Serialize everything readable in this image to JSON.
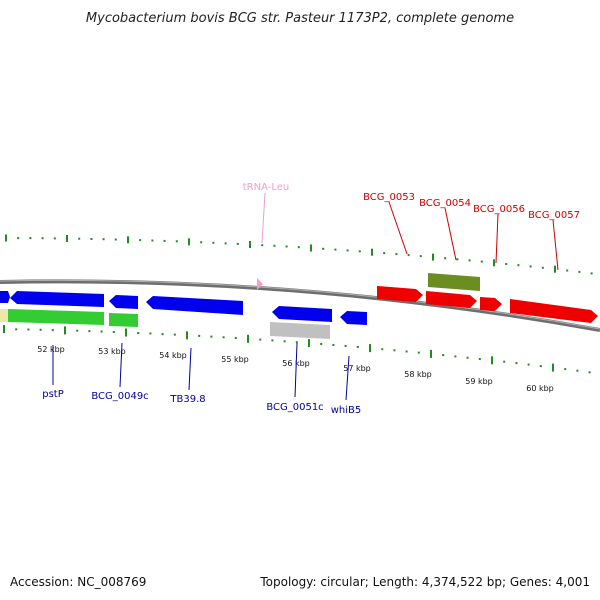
{
  "title": "Mycobacterium bovis BCG str. Pasteur 1173P2, complete genome",
  "footer": {
    "accession": "Accession: NC_008769",
    "topology": "Topology: circular; Length: 4,374,522 bp; Genes: 4,001"
  },
  "colors": {
    "backbone": "#808080",
    "plus_strand": "#ff0000",
    "minus_strand": "#0000ee",
    "rna_label": "#f0a0c8",
    "green_gene": "#33cc33",
    "olive_gene": "#6b8e23",
    "gray_gene": "#c0c0c0",
    "tick": "#228b22"
  },
  "scale": {
    "ticks": [
      "52 kbp",
      "53 kbp",
      "54 kbp",
      "55 kbp",
      "56 kbp",
      "57 kbp",
      "58 kbp",
      "59 kbp",
      "60 kbp"
    ]
  },
  "labels": {
    "trna": "tRNA-Leu",
    "top": [
      "BCG_0053",
      "BCG_0054",
      "BCG_0056",
      "BCG_0057"
    ],
    "bottom": [
      "pstP",
      "BCG_0049c",
      "TB39.8",
      "BCG_0051c",
      "whiB5"
    ]
  }
}
